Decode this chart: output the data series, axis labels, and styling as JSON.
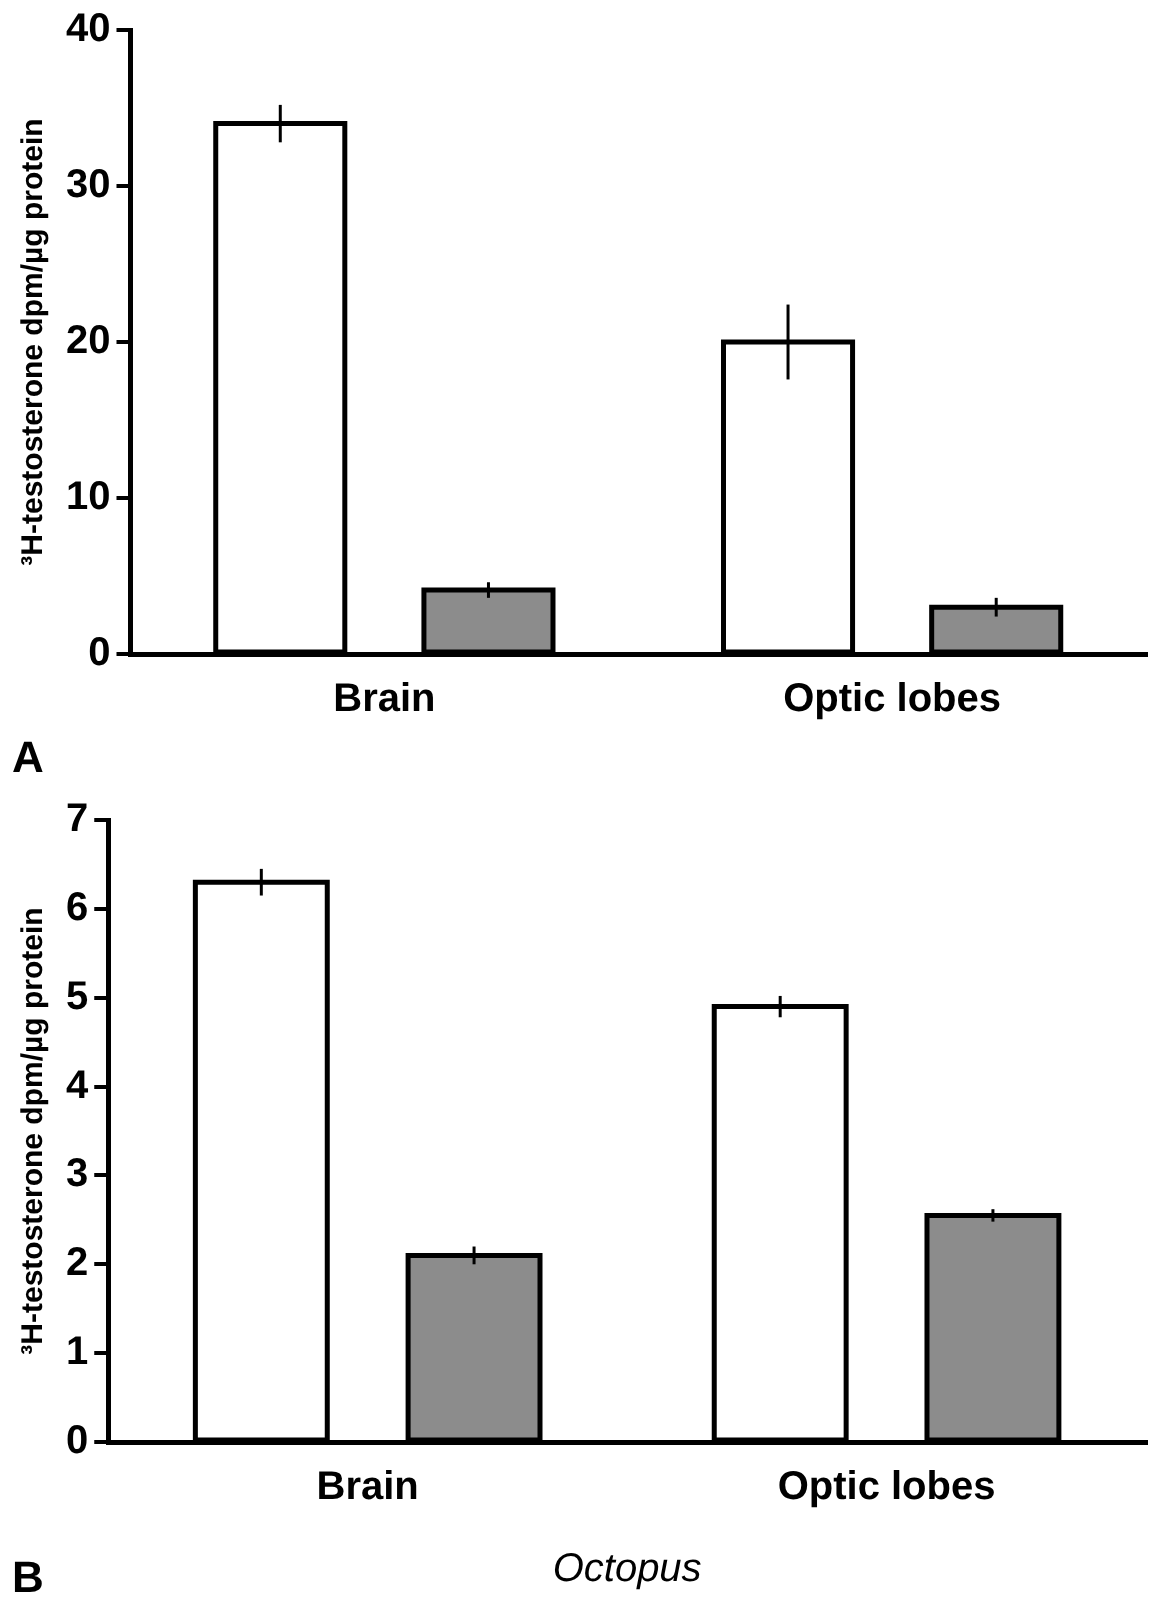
{
  "chart_data": [
    {
      "type": "bar",
      "categories": [
        "Brain",
        "Optic lobes"
      ],
      "ylabel": "³H-testosterone dpm/µg protein",
      "ylim": [
        0,
        40
      ],
      "yticks": [
        0,
        10,
        20,
        30,
        40
      ],
      "grid": false,
      "legend": false,
      "annotations": [
        "A"
      ],
      "series": [
        {
          "color": "#ffffff",
          "values": [
            34,
            20
          ],
          "errors": [
            1.2,
            2.4
          ]
        },
        {
          "color": "#8c8c8c",
          "values": [
            4.1,
            3.0
          ],
          "errors": [
            0.5,
            0.6
          ]
        }
      ]
    },
    {
      "type": "bar",
      "categories": [
        "Brain",
        "Optic lobes"
      ],
      "ylabel": "³H-testosterone dpm/µg protein",
      "xlabel": "Octopus",
      "ylim": [
        0,
        7
      ],
      "yticks": [
        0,
        1,
        2,
        3,
        4,
        5,
        6,
        7
      ],
      "grid": false,
      "legend": false,
      "annotations": [
        "B"
      ],
      "series": [
        {
          "color": "#ffffff",
          "values": [
            6.3,
            4.9
          ],
          "errors": [
            0.15,
            0.12
          ]
        },
        {
          "color": "#8c8c8c",
          "values": [
            2.1,
            2.55
          ],
          "errors": [
            0.1,
            0.07
          ]
        }
      ]
    }
  ]
}
